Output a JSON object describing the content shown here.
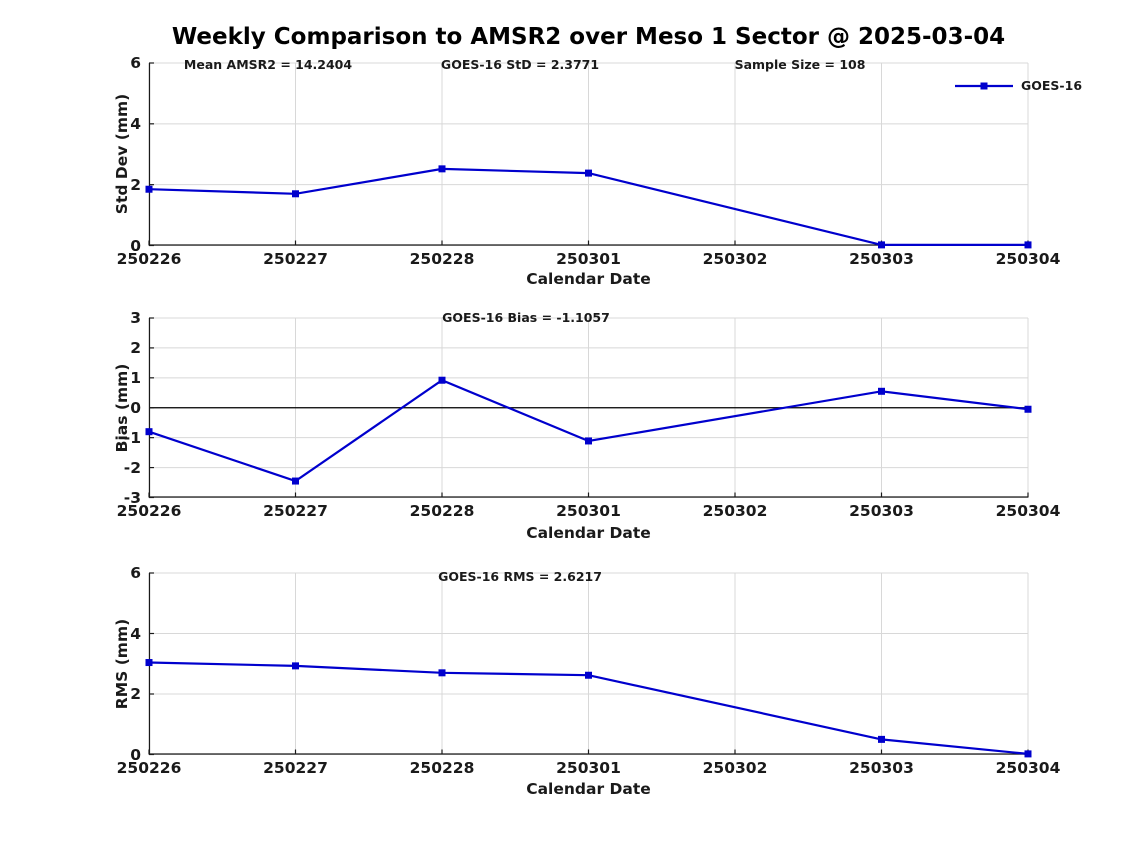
{
  "title": "Weekly Comparison to AMSR2 over Meso 1 Sector @ 2025-03-04",
  "legend": {
    "label": "GOES-16"
  },
  "colors": {
    "series_line": "#0000CD",
    "grid": "#d8d8d8",
    "axis": "#1a1a1a",
    "zero_line": "#000000",
    "text": "#1a1a1a"
  },
  "chart_data": [
    {
      "type": "line",
      "title": "",
      "annotations": [
        "Mean AMSR2 = 14.2404",
        "GOES-16 StD = 2.3771",
        "Sample Size = 108"
      ],
      "categories": [
        "250226",
        "250227",
        "250228",
        "250301",
        "250302",
        "250303",
        "250304"
      ],
      "series": [
        {
          "name": "GOES-16",
          "values": [
            1.85,
            1.7,
            2.52,
            2.38,
            null,
            0.02,
            0.02
          ]
        }
      ],
      "xlabel": "Calendar Date",
      "ylabel": "Std Dev (mm)",
      "ylim": [
        0,
        6
      ],
      "yticks": [
        0,
        2,
        4,
        6
      ],
      "grid": true,
      "zero_line": false,
      "legend_position": "top-right-outside",
      "note": "no data point at 250302; line connects 250301 to 250303"
    },
    {
      "type": "line",
      "title": "",
      "annotations": [
        "GOES-16 Bias  = -1.1057"
      ],
      "categories": [
        "250226",
        "250227",
        "250228",
        "250301",
        "250302",
        "250303",
        "250304"
      ],
      "series": [
        {
          "name": "GOES-16",
          "values": [
            -0.8,
            -2.45,
            0.92,
            -1.11,
            null,
            0.55,
            -0.05
          ]
        }
      ],
      "xlabel": "Calendar Date",
      "ylabel": "Bias (mm)",
      "ylim": [
        -3,
        3
      ],
      "yticks": [
        -3,
        -2,
        -1,
        0,
        1,
        2,
        3
      ],
      "grid": true,
      "zero_line": true,
      "note": "no data point at 250302; line connects 250301 to 250303"
    },
    {
      "type": "line",
      "title": "",
      "annotations": [
        "GOES-16 RMS = 2.6217"
      ],
      "categories": [
        "250226",
        "250227",
        "250228",
        "250301",
        "250302",
        "250303",
        "250304"
      ],
      "series": [
        {
          "name": "GOES-16",
          "values": [
            3.04,
            2.93,
            2.7,
            2.62,
            null,
            0.5,
            0.02
          ]
        }
      ],
      "xlabel": "Calendar Date",
      "ylabel": "RMS (mm)",
      "ylim": [
        0,
        6
      ],
      "yticks": [
        0,
        2,
        4,
        6
      ],
      "grid": true,
      "zero_line": false,
      "note": "no data point at 250302; line connects 250301 to 250303"
    }
  ]
}
